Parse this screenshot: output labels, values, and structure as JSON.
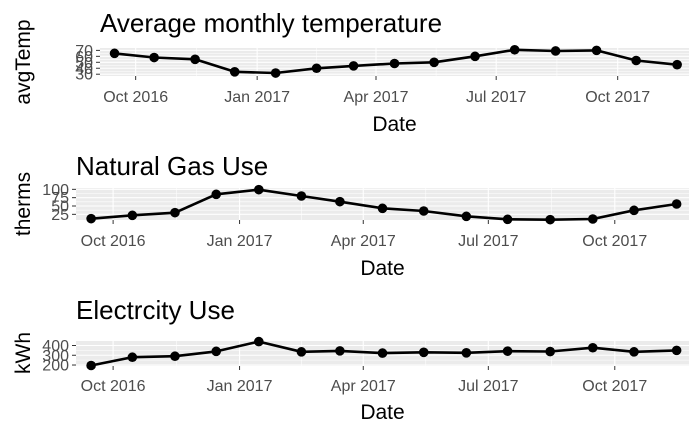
{
  "chart_data": [
    {
      "type": "line",
      "title": "Average monthly temperature",
      "xlabel": "Date",
      "ylabel": "avgTemp",
      "x": [
        "2016-09-15",
        "2016-10-15",
        "2016-11-15",
        "2016-12-15",
        "2017-01-15",
        "2017-02-15",
        "2017-03-15",
        "2017-04-15",
        "2017-05-15",
        "2017-06-15",
        "2017-07-15",
        "2017-08-15",
        "2017-09-15",
        "2017-10-15",
        "2017-11-15"
      ],
      "values": [
        65,
        58,
        55,
        34,
        32,
        40,
        44,
        48,
        50,
        60,
        71,
        69,
        70,
        53,
        46
      ],
      "ylim": [
        27,
        74
      ],
      "yticks": [
        30,
        40,
        50,
        60,
        70
      ],
      "xticks": [
        {
          "date": "2016-10-01",
          "label": "Oct 2016"
        },
        {
          "date": "2017-01-01",
          "label": "Jan 2017"
        },
        {
          "date": "2017-04-01",
          "label": "Apr 2017"
        },
        {
          "date": "2017-07-01",
          "label": "Jul 2017"
        },
        {
          "date": "2017-10-01",
          "label": "Oct 2017"
        }
      ],
      "grid": true
    },
    {
      "type": "line",
      "title": "Natural Gas Use",
      "xlabel": "Date",
      "ylabel": "therms",
      "x": [
        "2016-09-15",
        "2016-10-15",
        "2016-11-15",
        "2016-12-15",
        "2017-01-15",
        "2017-02-15",
        "2017-03-15",
        "2017-04-15",
        "2017-05-15",
        "2017-06-15",
        "2017-07-15",
        "2017-08-15",
        "2017-09-15",
        "2017-10-15",
        "2017-11-15"
      ],
      "values": [
        12,
        22,
        30,
        85,
        99,
        80,
        63,
        43,
        35,
        19,
        10,
        9,
        11,
        37,
        56
      ],
      "ylim": [
        8,
        104
      ],
      "yticks": [
        25,
        50,
        75,
        100
      ],
      "xticks": [
        {
          "date": "2016-10-01",
          "label": "Oct 2016"
        },
        {
          "date": "2017-01-01",
          "label": "Jan 2017"
        },
        {
          "date": "2017-04-01",
          "label": "Apr 2017"
        },
        {
          "date": "2017-07-01",
          "label": "Jul 2017"
        },
        {
          "date": "2017-10-01",
          "label": "Oct 2017"
        }
      ],
      "grid": true
    },
    {
      "type": "line",
      "title": "Electrcity Use",
      "xlabel": "Date",
      "ylabel": "kWh",
      "x": [
        "2016-09-15",
        "2016-10-15",
        "2016-11-15",
        "2016-12-15",
        "2017-01-15",
        "2017-02-15",
        "2017-03-15",
        "2017-04-15",
        "2017-05-15",
        "2017-06-15",
        "2017-07-15",
        "2017-08-15",
        "2017-09-15",
        "2017-10-15",
        "2017-11-15"
      ],
      "values": [
        195,
        280,
        290,
        340,
        440,
        335,
        345,
        322,
        330,
        325,
        342,
        338,
        377,
        335,
        350
      ],
      "ylim": [
        190,
        446
      ],
      "yticks": [
        200,
        300,
        400
      ],
      "xticks": [
        {
          "date": "2016-10-01",
          "label": "Oct 2016"
        },
        {
          "date": "2017-01-01",
          "label": "Jan 2017"
        },
        {
          "date": "2017-04-01",
          "label": "Apr 2017"
        },
        {
          "date": "2017-07-01",
          "label": "Jul 2017"
        },
        {
          "date": "2017-10-01",
          "label": "Oct 2017"
        }
      ],
      "grid": true
    }
  ]
}
